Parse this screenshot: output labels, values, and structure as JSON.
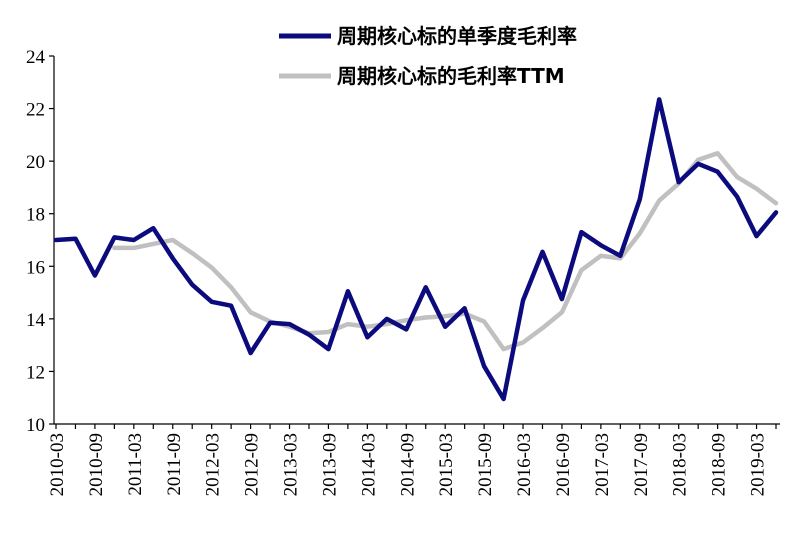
{
  "chart_data": {
    "type": "line",
    "title": "",
    "xlabel": "",
    "ylabel": "",
    "ylim": [
      10,
      24
    ],
    "yticks": [
      10,
      12,
      14,
      16,
      18,
      20,
      22,
      24
    ],
    "grid": false,
    "legend_position": "top",
    "x": [
      "2010-03",
      "2010-06",
      "2010-09",
      "2010-12",
      "2011-03",
      "2011-06",
      "2011-09",
      "2011-12",
      "2012-03",
      "2012-06",
      "2012-09",
      "2012-12",
      "2013-03",
      "2013-06",
      "2013-09",
      "2013-12",
      "2014-03",
      "2014-06",
      "2014-09",
      "2014-12",
      "2015-03",
      "2015-06",
      "2015-09",
      "2015-12",
      "2016-03",
      "2016-06",
      "2016-09",
      "2016-12",
      "2017-03",
      "2017-06",
      "2017-09",
      "2017-12",
      "2018-03",
      "2018-06",
      "2018-09",
      "2018-12",
      "2019-03",
      "2019-06"
    ],
    "x_tick_labels": [
      "2010-03",
      "2010-09",
      "2011-03",
      "2011-09",
      "2012-03",
      "2012-09",
      "2013-03",
      "2013-09",
      "2014-03",
      "2014-09",
      "2015-03",
      "2015-09",
      "2016-03",
      "2016-09",
      "2017-03",
      "2017-09",
      "2018-03",
      "2018-09",
      "2019-03"
    ],
    "series": [
      {
        "name": "周期核心标的单季度毛利率",
        "color": "#0b0b7e",
        "values": [
          17.0,
          17.05,
          15.65,
          17.1,
          17.0,
          17.45,
          16.3,
          15.3,
          14.65,
          14.5,
          12.7,
          13.85,
          13.8,
          13.4,
          12.85,
          15.05,
          13.3,
          14.0,
          13.6,
          15.2,
          13.7,
          14.4,
          12.2,
          10.95,
          14.7,
          16.55,
          14.75,
          17.3,
          16.8,
          16.4,
          18.55,
          22.35,
          19.2,
          19.9,
          19.6,
          18.65,
          17.15,
          18.05
        ]
      },
      {
        "name": "周期核心标的毛利率TTM",
        "color": "#c0c0c0",
        "values": [
          null,
          null,
          null,
          16.7,
          16.7,
          16.85,
          17.0,
          16.5,
          15.95,
          15.2,
          14.25,
          13.9,
          13.7,
          13.45,
          13.5,
          13.8,
          13.7,
          13.8,
          13.95,
          14.05,
          14.1,
          14.2,
          13.9,
          12.85,
          13.1,
          13.65,
          14.25,
          15.85,
          16.4,
          16.3,
          17.25,
          18.5,
          19.15,
          20.05,
          20.3,
          19.4,
          18.95,
          18.4
        ]
      }
    ]
  }
}
